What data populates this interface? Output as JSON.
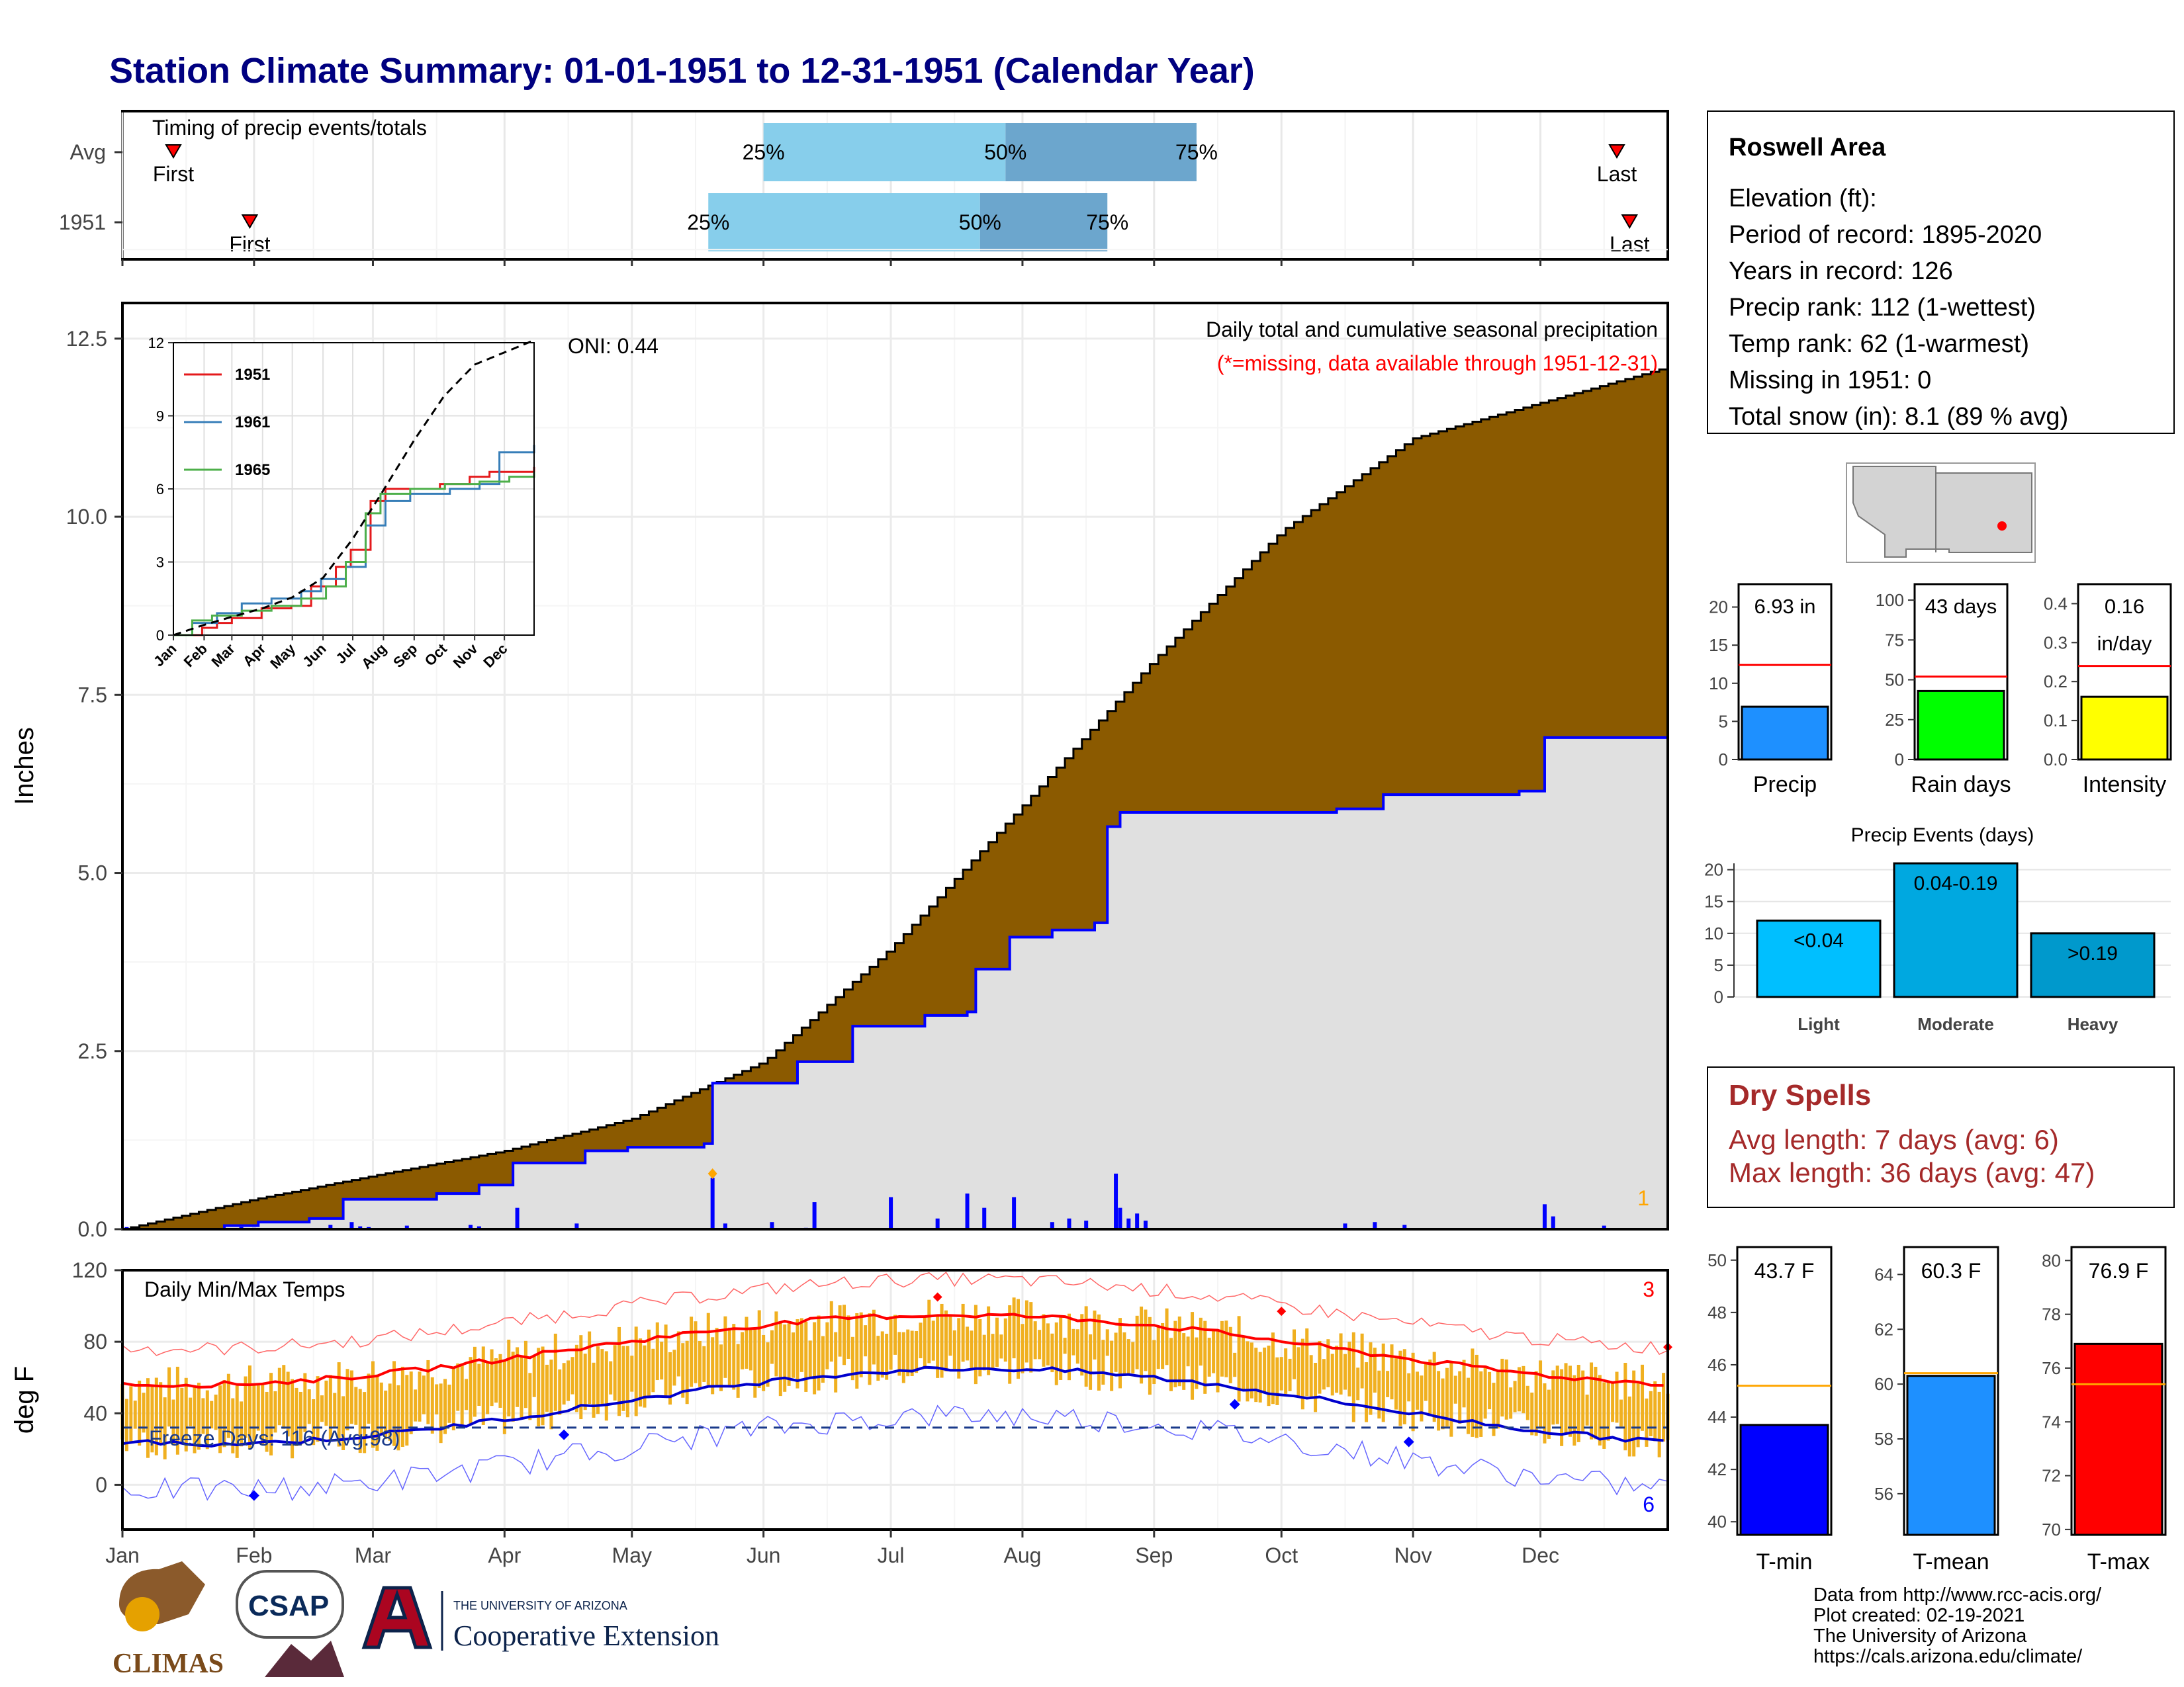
{
  "title": "Station Climate Summary: 01-01-1951 to 12-31-1951 (Calendar Year)",
  "months": [
    "Jan",
    "Feb",
    "Mar",
    "Apr",
    "May",
    "Jun",
    "Jul",
    "Aug",
    "Sep",
    "Oct",
    "Nov",
    "Dec"
  ],
  "colors": {
    "title": "#000080",
    "precip_fill": "#8B5A00",
    "precip_area_current": "#E0E0E0",
    "cum_line_current": "#0000FF",
    "bar_daily": "#0000FF",
    "temp_bar": "#F0B020",
    "tmax_avg": "#FF0000",
    "tmin_avg": "#0000CD",
    "timing_light": "#87CEEB",
    "timing_dark": "#6CA6CD",
    "dry_spells_text": "#A52A2A"
  },
  "timing": {
    "title": "Timing of precip events/totals",
    "rows": [
      {
        "label": "Avg",
        "first_label": "First",
        "last_label": "Last",
        "p25_label": "25%",
        "p50_label": "50%",
        "p75_label": "75%",
        "first_doy": 13,
        "p25_doy": 152,
        "p50_doy": 209,
        "p75_doy": 254,
        "last_doy": 353
      },
      {
        "label": "1951",
        "first_label": "First",
        "last_label": "Last",
        "p25_label": "25%",
        "p50_label": "50%",
        "p75_label": "75%",
        "first_doy": 31,
        "p25_doy": 139,
        "p50_doy": 203,
        "p75_doy": 233,
        "last_doy": 356
      }
    ]
  },
  "precip_panel": {
    "ylabel": "Inches",
    "yticks": [
      "0.0",
      "2.5",
      "5.0",
      "7.5",
      "10.0",
      "12.5"
    ],
    "ylim": [
      0,
      13.0
    ],
    "title": "Daily total and cumulative seasonal precipitation",
    "subtitle": "(*=missing, data available through 1951-12-31)",
    "oni": "ONI: 0.44",
    "corner_count": "1",
    "avg_cum": [
      [
        1,
        0
      ],
      [
        32,
        0.42
      ],
      [
        60,
        0.75
      ],
      [
        91,
        1.1
      ],
      [
        121,
        1.55
      ],
      [
        152,
        2.35
      ],
      [
        182,
        3.95
      ],
      [
        213,
        5.95
      ],
      [
        244,
        8.0
      ],
      [
        274,
        9.8
      ],
      [
        305,
        11.1
      ],
      [
        335,
        11.6
      ],
      [
        365,
        12.1
      ]
    ],
    "cum_1951": [
      [
        1,
        0
      ],
      [
        25,
        0.05
      ],
      [
        33,
        0.1
      ],
      [
        45,
        0.15
      ],
      [
        53,
        0.42
      ],
      [
        75,
        0.5
      ],
      [
        85,
        0.62
      ],
      [
        93,
        0.93
      ],
      [
        110,
        1.1
      ],
      [
        120,
        1.15
      ],
      [
        138,
        1.2
      ],
      [
        140,
        2.05
      ],
      [
        160,
        2.35
      ],
      [
        173,
        2.85
      ],
      [
        190,
        3.0
      ],
      [
        200,
        3.05
      ],
      [
        202,
        3.65
      ],
      [
        210,
        4.1
      ],
      [
        220,
        4.2
      ],
      [
        230,
        4.3
      ],
      [
        233,
        5.65
      ],
      [
        236,
        5.85
      ],
      [
        265,
        5.85
      ],
      [
        287,
        5.9
      ],
      [
        298,
        6.1
      ],
      [
        330,
        6.15
      ],
      [
        336,
        6.9
      ],
      [
        365,
        6.93
      ]
    ],
    "daily_bars": [
      [
        2,
        0.03
      ],
      [
        29,
        0.03
      ],
      [
        32,
        0.02
      ],
      [
        50,
        0.06
      ],
      [
        55,
        0.1
      ],
      [
        57,
        0.04
      ],
      [
        59,
        0.03
      ],
      [
        68,
        0.05
      ],
      [
        83,
        0.06
      ],
      [
        85,
        0.04
      ],
      [
        94,
        0.3
      ],
      [
        108,
        0.08
      ],
      [
        140,
        0.72
      ],
      [
        143,
        0.08
      ],
      [
        154,
        0.1
      ],
      [
        162,
        0.02
      ],
      [
        164,
        0.38
      ],
      [
        182,
        0.45
      ],
      [
        193,
        0.15
      ],
      [
        200,
        0.5
      ],
      [
        204,
        0.3
      ],
      [
        211,
        0.45
      ],
      [
        220,
        0.1
      ],
      [
        224,
        0.15
      ],
      [
        228,
        0.12
      ],
      [
        235,
        0.78
      ],
      [
        236,
        0.3
      ],
      [
        238,
        0.15
      ],
      [
        240,
        0.22
      ],
      [
        242,
        0.12
      ],
      [
        289,
        0.08
      ],
      [
        296,
        0.1
      ],
      [
        303,
        0.06
      ],
      [
        336,
        0.35
      ],
      [
        338,
        0.18
      ],
      [
        350,
        0.05
      ]
    ]
  },
  "inset": {
    "yticks": [
      "0",
      "3",
      "6",
      "9",
      "12"
    ],
    "ylim": [
      0,
      12
    ],
    "xticks": [
      "Jan",
      "Feb",
      "Mar",
      "Apr",
      "May",
      "Jun",
      "Jul",
      "Aug",
      "Sep",
      "Oct",
      "Nov",
      "Dec"
    ],
    "series": [
      {
        "name": "1951",
        "color": "#E41A1C",
        "points": [
          [
            1,
            0
          ],
          [
            30,
            0.3
          ],
          [
            45,
            0.5
          ],
          [
            60,
            0.7
          ],
          [
            90,
            1.1
          ],
          [
            120,
            1.2
          ],
          [
            140,
            2.0
          ],
          [
            165,
            2.8
          ],
          [
            180,
            3.5
          ],
          [
            200,
            5.5
          ],
          [
            215,
            6.0
          ],
          [
            240,
            6.0
          ],
          [
            270,
            6.2
          ],
          [
            300,
            6.5
          ],
          [
            320,
            6.7
          ],
          [
            365,
            6.9
          ]
        ]
      },
      {
        "name": "1961",
        "color": "#377EB8",
        "points": [
          [
            1,
            0
          ],
          [
            20,
            0.5
          ],
          [
            45,
            0.9
          ],
          [
            70,
            1.3
          ],
          [
            100,
            1.5
          ],
          [
            130,
            1.8
          ],
          [
            150,
            2.3
          ],
          [
            175,
            2.8
          ],
          [
            195,
            4.5
          ],
          [
            215,
            5.5
          ],
          [
            240,
            5.8
          ],
          [
            280,
            6.0
          ],
          [
            310,
            6.2
          ],
          [
            330,
            7.5
          ],
          [
            365,
            7.8
          ]
        ]
      },
      {
        "name": "1965",
        "color": "#4DAF4A",
        "points": [
          [
            1,
            0
          ],
          [
            20,
            0.6
          ],
          [
            40,
            0.8
          ],
          [
            70,
            1.0
          ],
          [
            100,
            1.2
          ],
          [
            130,
            1.5
          ],
          [
            155,
            2.0
          ],
          [
            175,
            3.0
          ],
          [
            195,
            5.0
          ],
          [
            210,
            5.8
          ],
          [
            240,
            6.0
          ],
          [
            275,
            6.2
          ],
          [
            310,
            6.3
          ],
          [
            340,
            6.5
          ],
          [
            365,
            6.7
          ]
        ]
      }
    ],
    "avg_points": [
      [
        1,
        0
      ],
      [
        32,
        0.42
      ],
      [
        60,
        0.75
      ],
      [
        91,
        1.1
      ],
      [
        121,
        1.55
      ],
      [
        152,
        2.35
      ],
      [
        182,
        3.95
      ],
      [
        213,
        5.95
      ],
      [
        244,
        8.0
      ],
      [
        274,
        9.8
      ],
      [
        305,
        11.1
      ],
      [
        335,
        11.6
      ],
      [
        365,
        12.1
      ]
    ]
  },
  "temp_panel": {
    "ylabel": "deg F",
    "yticks": [
      "0",
      "40",
      "80",
      "120"
    ],
    "ylim": [
      -25,
      120
    ],
    "title": "Daily Min/Max Temps",
    "freeze": "Freeze Days: 116 (Avg:98)",
    "freeze_line": 32,
    "count_top": "3",
    "count_bottom": "6"
  },
  "info_box": {
    "title": "Roswell Area",
    "lines": [
      "Elevation (ft):",
      "Period of record: 1895-2020",
      "Years in record: 126",
      "Precip rank: 112 (1-wettest)",
      "Temp rank: 62 (1-warmest)",
      "Missing in 1951: 0",
      "Total snow (in): 8.1 (89 % avg)"
    ]
  },
  "mini_bars": [
    {
      "name": "precip",
      "label": "Precip",
      "value_text": "6.93 in",
      "value": 6.93,
      "avg": 12.4,
      "ylim": [
        0,
        23
      ],
      "yticks": [
        "0",
        "5",
        "10",
        "15",
        "20"
      ],
      "color": "#1E90FF"
    },
    {
      "name": "rain-days",
      "label": "Rain days",
      "value_text": "43 days",
      "value": 43,
      "avg": 52,
      "ylim": [
        0,
        110
      ],
      "yticks": [
        "0",
        "25",
        "50",
        "75",
        "100"
      ],
      "color": "#00FF00"
    },
    {
      "name": "intensity",
      "label": "Intensity",
      "value_text": "0.16",
      "value_text2": "in/day",
      "value": 0.161,
      "avg": 0.24,
      "ylim": [
        0,
        0.45
      ],
      "yticks": [
        "0.0",
        "0.1",
        "0.2",
        "0.3",
        "0.4"
      ],
      "color": "#FFFF00"
    }
  ],
  "events": {
    "title": "Precip Events (days)",
    "ylim": [
      0,
      21
    ],
    "yticks": [
      "0",
      "5",
      "10",
      "15",
      "20"
    ],
    "bars": [
      {
        "category": "Light",
        "label": "<0.04",
        "value": 12,
        "color": "#00BFFF"
      },
      {
        "category": "Moderate",
        "label": "0.04-0.19",
        "value": 21,
        "color": "#00A8E0"
      },
      {
        "category": "Heavy",
        "label": ">0.19",
        "value": 10,
        "color": "#0099CC"
      }
    ]
  },
  "dry_spells": {
    "title": "Dry Spells",
    "avg": "Avg length: 7 days (avg: 6)",
    "max": "Max length: 36 days (avg: 47)"
  },
  "temp_bars": [
    {
      "name": "tmin",
      "label": "T-min",
      "value_text": "43.7 F",
      "value": 43.7,
      "avg": 45.2,
      "ylim": [
        39.5,
        50.5
      ],
      "yticks": [
        "40",
        "42",
        "44",
        "46",
        "48",
        "50"
      ],
      "color": "#0000FF"
    },
    {
      "name": "tmean",
      "label": "T-mean",
      "value_text": "60.3 F",
      "value": 60.3,
      "avg": 60.4,
      "ylim": [
        54.5,
        65.0
      ],
      "yticks": [
        "56",
        "58",
        "60",
        "62",
        "64"
      ],
      "color": "#1E90FF"
    },
    {
      "name": "tmax",
      "label": "T-max",
      "value_text": "76.9 F",
      "value": 76.9,
      "avg": 75.4,
      "ylim": [
        69.8,
        80.5
      ],
      "yticks": [
        "70",
        "72",
        "74",
        "76",
        "78",
        "80"
      ],
      "color": "#FF0000"
    }
  ],
  "footer": {
    "lines": [
      "Data from http://www.rcc-acis.org/",
      "Plot created: 02-19-2021",
      "The University of Arizona",
      "https://cals.arizona.edu/climate/"
    ],
    "logo_climas": "CLIMAS",
    "logo_csap": "CSAP",
    "logo_ua_top": "THE UNIVERSITY OF ARIZONA",
    "logo_ua_bottom": "Cooperative Extension"
  }
}
